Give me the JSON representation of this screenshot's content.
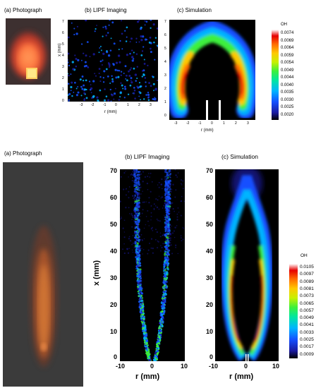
{
  "top": {
    "caption_a": "(a) Photograph",
    "caption_b": "(b) LIPF Imaging",
    "caption_c": "(c) Simulation",
    "lipf_y_ticks": [
      "7",
      "6",
      "5",
      "4",
      "3",
      "2",
      "1",
      "0"
    ],
    "lipf_x_ticks": [
      "-3",
      "-2",
      "-1",
      "0",
      "1",
      "2",
      "3"
    ],
    "lipf_ylabel": "x (mm)",
    "lipf_xlabel": "r (mm)",
    "sim_y_ticks": [
      "7",
      "6",
      "5",
      "4",
      "3",
      "2",
      "1",
      "0"
    ],
    "sim_x_ticks": [
      "-3",
      "-2",
      "-1",
      "0",
      "1",
      "2",
      "3"
    ],
    "sim_xlabel": "r (mm)",
    "colorbar_title": "OH",
    "colorbar_values": [
      "0.0074",
      "0.0069",
      "0.0064",
      "0.0059",
      "0.0054",
      "0.0049",
      "0.0044",
      "0.0040",
      "0.0035",
      "0.0030",
      "0.0025",
      "0.0020"
    ]
  },
  "bottom": {
    "caption_a": "(a) Photograph",
    "caption_b": "(b) LIPF Imaging",
    "caption_c": "(c) Simulation",
    "lipf_y_ticks": [
      "70",
      "60",
      "50",
      "40",
      "30",
      "20",
      "10",
      "0"
    ],
    "lipf_x_ticks": [
      "-10",
      "0",
      "10"
    ],
    "lipf_ylabel": "x (mm)",
    "lipf_xlabel": "r (mm)",
    "sim_y_ticks": [
      "70",
      "60",
      "50",
      "40",
      "30",
      "20",
      "10",
      "0"
    ],
    "sim_x_ticks": [
      "-10",
      "0",
      "10"
    ],
    "sim_xlabel": "r (mm)",
    "colorbar_title": "OH",
    "colorbar_values": [
      "0.0105",
      "0.0097",
      "0.0089",
      "0.0081",
      "0.0073",
      "0.0065",
      "0.0057",
      "0.0049",
      "0.0041",
      "0.0033",
      "0.0025",
      "0.0017",
      "0.0009"
    ]
  },
  "colors": {
    "colormap": [
      "#000000",
      "#1a1aa0",
      "#1450ff",
      "#00b4ff",
      "#00e6a0",
      "#3cf03c",
      "#c8f000",
      "#ffc800",
      "#ff6a00",
      "#e60000",
      "#ffffff"
    ],
    "flame_orange": "#ff7a2a",
    "background": "#ffffff"
  }
}
